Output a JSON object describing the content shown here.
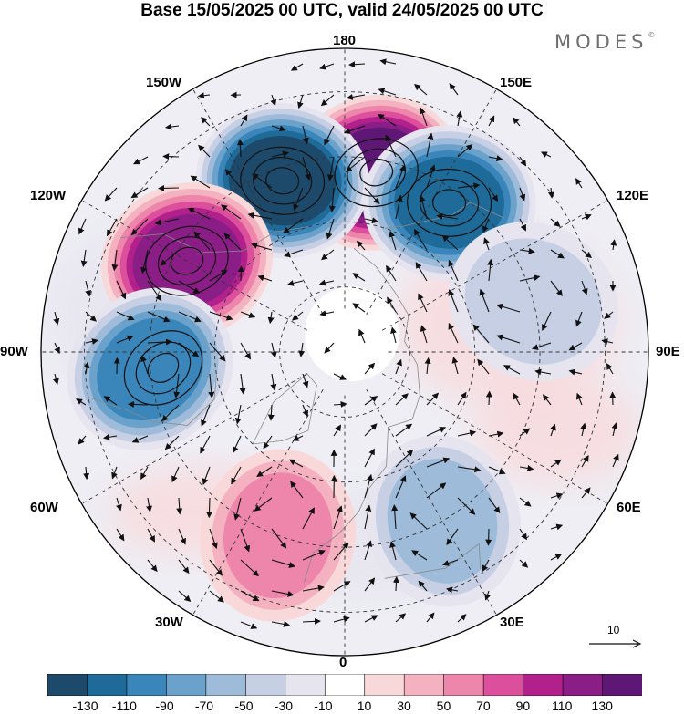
{
  "title": "Base 15/05/2025 00 UTC, valid 24/05/2025 00 UTC",
  "brand": "MODES",
  "brand_mark": "©",
  "map": {
    "projection": "north-polar-stereographic",
    "longitude_labels": {
      "top": "180",
      "top_left": "150W",
      "top_right": "150E",
      "upper_left": "120W",
      "upper_right": "120E",
      "left": "90W",
      "right": "90E",
      "lower_left": "60W",
      "lower_right": "60E",
      "bottom_left": "30W",
      "bottom_right": "30E",
      "bottom": "0"
    },
    "anomaly_centers": [
      {
        "lon": 170,
        "value": 130
      },
      {
        "lon": -160,
        "value": -130
      },
      {
        "lon": 145,
        "value": -110
      },
      {
        "lon": -120,
        "value": 110
      },
      {
        "lon": -85,
        "value": -90
      },
      {
        "lon": 105,
        "value": -30
      },
      {
        "lon": -20,
        "value": 50
      },
      {
        "lon": 30,
        "value": -50
      }
    ]
  },
  "reference_vector": {
    "label": "10"
  },
  "colorbar": {
    "ticks": [
      "-130",
      "-110",
      "-90",
      "-70",
      "-50",
      "-30",
      "-10",
      "10",
      "30",
      "50",
      "70",
      "90",
      "110",
      "130"
    ],
    "colors": [
      "#1d4a6b",
      "#1e6a98",
      "#3a86ba",
      "#6aa2cc",
      "#9ebbd9",
      "#c6cfe4",
      "#e6e4ef",
      "#ffffff",
      "#f9d8da",
      "#f4b2c0",
      "#ee85aa",
      "#dc4f9c",
      "#b2208c",
      "#8a1d86",
      "#5f1775"
    ]
  }
}
